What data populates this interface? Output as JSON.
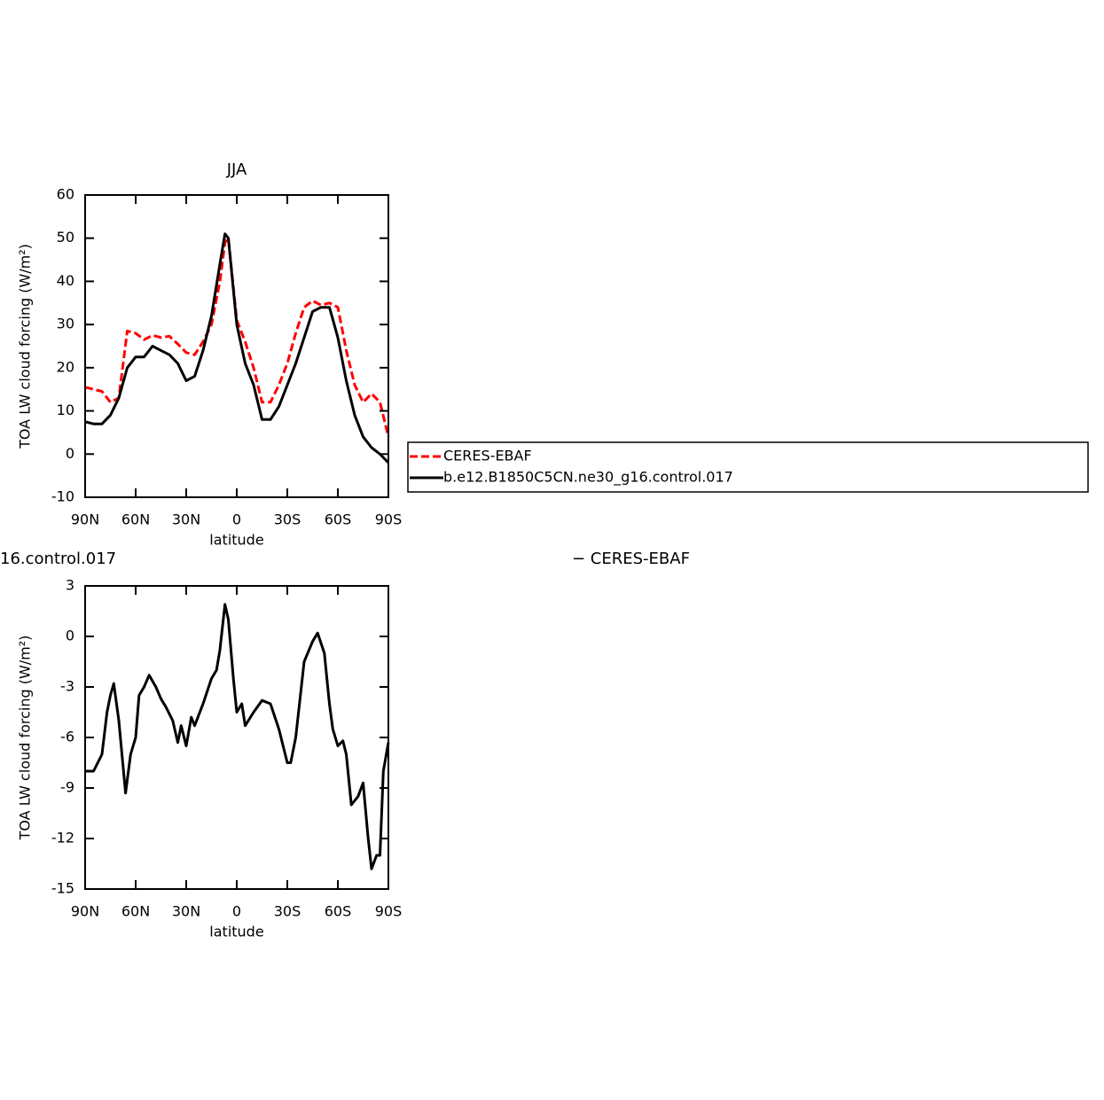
{
  "chart_data": [
    {
      "type": "line",
      "title": "JJA",
      "xlabel": "latitude",
      "ylabel": "TOA LW cloud forcing (W/m²)",
      "x": [
        90,
        85,
        80,
        75,
        70,
        65,
        60,
        55,
        50,
        45,
        40,
        35,
        30,
        25,
        20,
        15,
        10,
        7,
        5,
        0,
        -5,
        -10,
        -15,
        -20,
        -25,
        -30,
        -35,
        -40,
        -45,
        -50,
        -55,
        -60,
        -65,
        -70,
        -75,
        -80,
        -85,
        -90
      ],
      "series": [
        {
          "name": "CERES-EBAF",
          "color": "#ff0000",
          "linestyle": "dashed",
          "values": [
            15.5,
            15,
            14.5,
            12,
            13,
            28.5,
            28,
            26.5,
            27.5,
            27,
            27.3,
            25.5,
            23.5,
            23,
            26,
            30,
            40,
            49,
            50,
            31,
            26,
            20,
            12,
            12,
            16,
            21,
            28,
            34,
            35.5,
            34.5,
            35,
            34,
            24,
            16,
            12,
            14,
            12,
            4
          ]
        },
        {
          "name": "b.e12.B1850C5CN.ne30_g16.control.017",
          "color": "#000000",
          "linestyle": "solid",
          "values": [
            7.5,
            7,
            7,
            9,
            13,
            20,
            22.5,
            22.5,
            25,
            24,
            23,
            21,
            17,
            18,
            24,
            32,
            44,
            51,
            50,
            30,
            21,
            16,
            8,
            8,
            11,
            16,
            21,
            27,
            33,
            34,
            34,
            27,
            17,
            9,
            4,
            1.5,
            0,
            -2
          ]
        }
      ],
      "xlim": [
        90,
        -90
      ],
      "xticks": [
        {
          "value": 90,
          "label": "90N"
        },
        {
          "value": 60,
          "label": "60N"
        },
        {
          "value": 30,
          "label": "30N"
        },
        0,
        {
          "value": -30,
          "label": "30S"
        },
        {
          "value": -60,
          "label": "60S"
        },
        {
          "value": -90,
          "label": "90S"
        }
      ],
      "ylim": [
        -10,
        60
      ],
      "yticks": [
        -10,
        0,
        10,
        20,
        30,
        40,
        50,
        60
      ],
      "legend": true
    },
    {
      "type": "line",
      "title_left": "16.control.017",
      "title_right": "− CERES-EBAF",
      "xlabel": "latitude",
      "ylabel": "TOA LW cloud forcing (W/m²)",
      "x": [
        90,
        85,
        80,
        77,
        75,
        73,
        70,
        66,
        63,
        60,
        58,
        55,
        52,
        48,
        45,
        42,
        38,
        35,
        33,
        30,
        27,
        25,
        20,
        15,
        12,
        10,
        7,
        5,
        2,
        0,
        -3,
        -5,
        -10,
        -15,
        -20,
        -25,
        -30,
        -32,
        -35,
        -40,
        -45,
        -48,
        -52,
        -55,
        -57,
        -60,
        -63,
        -65,
        -68,
        -72,
        -75,
        -78,
        -80,
        -83,
        -85,
        -87,
        -90
      ],
      "series": [
        {
          "name": null,
          "color": "#000000",
          "linestyle": "solid",
          "values": [
            -8,
            -8,
            -7,
            -4.5,
            -3.5,
            -2.8,
            -5,
            -9.3,
            -7,
            -6,
            -3.5,
            -3,
            -2.3,
            -3,
            -3.7,
            -4.2,
            -5,
            -6.3,
            -5.3,
            -6.5,
            -4.8,
            -5.3,
            -4,
            -2.5,
            -2,
            -0.8,
            1.9,
            1,
            -2.5,
            -4.5,
            -4,
            -5.3,
            -4.5,
            -3.8,
            -4,
            -5.5,
            -7.5,
            -7.5,
            -6,
            -1.5,
            -0.3,
            0.2,
            -1,
            -4,
            -5.5,
            -6.5,
            -6.2,
            -7,
            -10,
            -9.5,
            -8.7,
            -12,
            -13.8,
            -13,
            -13,
            -8,
            -6.3
          ]
        }
      ],
      "xlim": [
        90,
        -90
      ],
      "xticks": [
        {
          "value": 90,
          "label": "90N"
        },
        {
          "value": 60,
          "label": "60N"
        },
        {
          "value": 30,
          "label": "30N"
        },
        0,
        {
          "value": -30,
          "label": "30S"
        },
        {
          "value": -60,
          "label": "60S"
        },
        {
          "value": -90,
          "label": "90S"
        }
      ],
      "ylim": [
        -15,
        3
      ],
      "yticks": [
        -15,
        -12,
        -9,
        -6,
        -3,
        0,
        3
      ],
      "legend": false
    }
  ]
}
